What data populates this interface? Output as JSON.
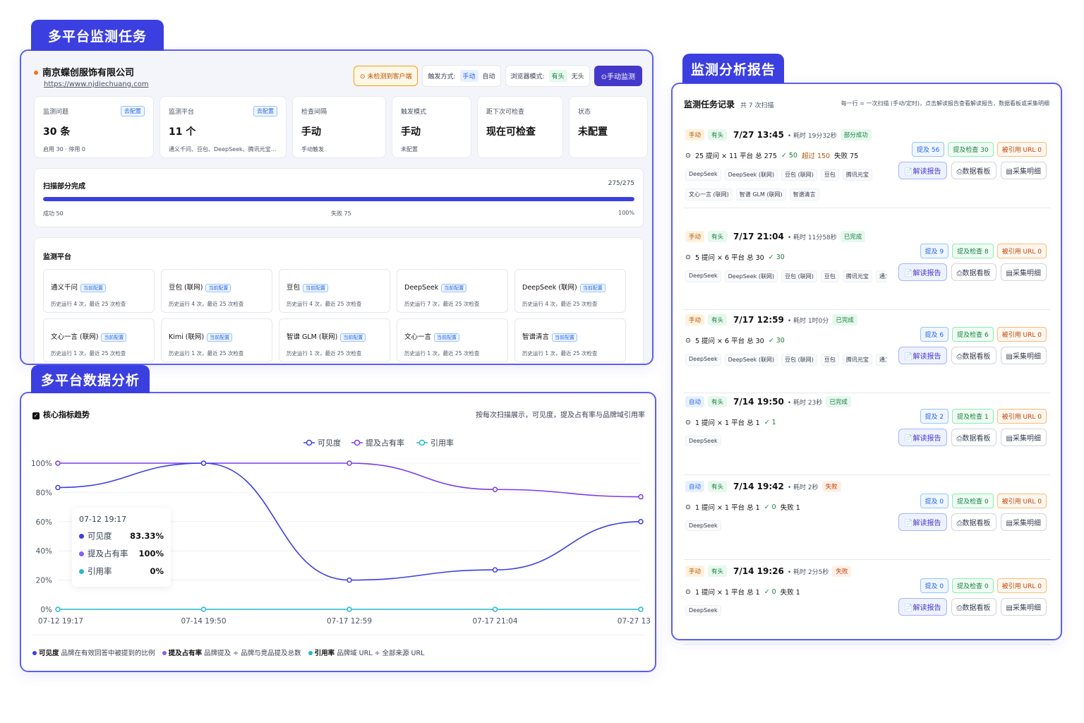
{
  "sections": {
    "monitor_task": "多平台监测任务",
    "data_analysis": "多平台数据分析",
    "report": "监测分析报告"
  },
  "task": {
    "company": "南京蝶创服饰有限公司",
    "url": "https://www.njdiechuang.com",
    "warn": "未检测到客户端",
    "trigger_label": "触发方式:",
    "trigger_on": "手动",
    "trigger_off": "自动",
    "browser_label": "浏览器模式:",
    "browser_on": "有头",
    "browser_off": "无头",
    "manual_btn": "⊙手动监测",
    "stats": [
      {
        "label": "监测问题",
        "value": "30 条",
        "sub": "启用 30 · 停用 0",
        "cfg": "去配置"
      },
      {
        "label": "监测平台",
        "value": "11 个",
        "sub": "通义千问、豆包、DeepSeek、腾讯元宝...",
        "cfg": "去配置"
      },
      {
        "label": "检查间隔",
        "value": "手动",
        "sub": "手动触发",
        "cfg": ""
      },
      {
        "label": "触发模式",
        "value": "手动",
        "sub": "未配置",
        "cfg": ""
      },
      {
        "label": "距下次可检查",
        "value": "现在可检查",
        "sub": "",
        "cfg": ""
      },
      {
        "label": "状态",
        "value": "未配置",
        "sub": "",
        "cfg": ""
      }
    ],
    "scan": {
      "title": "扫描部分完成",
      "count": "275/275",
      "progress": 1.0,
      "success": "成功 50",
      "fail": "失败 75",
      "pct": "100%"
    },
    "platforms_title": "监测平台",
    "platforms": [
      {
        "name": "通义千问",
        "badge": "当前配置",
        "hist": "历史运行 4 次，最近 25 次检查"
      },
      {
        "name": "豆包 (联网)",
        "badge": "当前配置",
        "hist": "历史运行 4 次，最近 25 次检查"
      },
      {
        "name": "豆包",
        "badge": "当前配置",
        "hist": "历史运行 4 次，最近 25 次检查"
      },
      {
        "name": "DeepSeek",
        "badge": "当前配置",
        "hist": "历史运行 7 次，最近 25 次检查"
      },
      {
        "name": "DeepSeek (联网)",
        "badge": "当前配置",
        "hist": "历史运行 4 次，最近 25 次检查"
      },
      {
        "name": "文心一言 (联网)",
        "badge": "当前配置",
        "hist": "历史运行 1 次，最近 25 次检查"
      },
      {
        "name": "Kimi (联网)",
        "badge": "当前配置",
        "hist": "历史运行 1 次，最近 25 次检查"
      },
      {
        "name": "智谱 GLM (联网)",
        "badge": "当前配置",
        "hist": "历史运行 1 次，最近 25 次检查"
      },
      {
        "name": "文心一言",
        "badge": "当前配置",
        "hist": "历史运行 1 次，最近 25 次检查"
      },
      {
        "name": "智谱清言",
        "badge": "当前配置",
        "hist": "历史运行 1 次，最近 25 次检查"
      }
    ]
  },
  "analysis": {
    "title": "核心指标趋势",
    "desc": "按每次扫描展示，可见度，提及占有率与品牌域引用率",
    "tooltip": {
      "time": "07-12 19:17",
      "rows": [
        {
          "name": "可见度",
          "value": "83.33%",
          "color": "#3b3fe0"
        },
        {
          "name": "提及占有率",
          "value": "100%",
          "color": "#8b5cf6"
        },
        {
          "name": "引用率",
          "value": "0%",
          "color": "#22b8cf"
        }
      ]
    },
    "footer": [
      {
        "name": "可见度",
        "desc": "品牌在有效回答中被提到的比例",
        "color": "#3b3fe0"
      },
      {
        "name": "提及占有率",
        "desc": "品牌提及 ÷ 品牌与竞品提及总数",
        "color": "#8b5cf6"
      },
      {
        "name": "引用率",
        "desc": "品牌域 URL ÷ 全部来源 URL",
        "color": "#22b8cf"
      }
    ]
  },
  "chart_data": {
    "type": "line",
    "x": [
      "07-12 19:17",
      "07-14 19:50",
      "07-17 12:59",
      "07-17 21:04",
      "07-27 13"
    ],
    "ylim": [
      0,
      100
    ],
    "yticks": [
      "0%",
      "20%",
      "40%",
      "60%",
      "80%",
      "100%"
    ],
    "series": [
      {
        "name": "可见度",
        "color": "#3b3fe0",
        "values": [
          83.33,
          100,
          20,
          27,
          60
        ]
      },
      {
        "name": "提及占有率",
        "color": "#7c3aed",
        "values": [
          100,
          100,
          100,
          82,
          77
        ]
      },
      {
        "name": "引用率",
        "color": "#22b8cf",
        "values": [
          0,
          0,
          0,
          0,
          0
        ]
      }
    ],
    "legend_position": "top-center",
    "grid": true
  },
  "report": {
    "title": "监测任务记录",
    "count": "共 7 次扫描",
    "desc": "每一行 = 一次扫描 (手动/定时)，点击解读报告查看解读报告，数据看板或采集明细",
    "records": [
      {
        "trig": "手动",
        "trig_type": "m",
        "mode": "有头",
        "time": "7/27 13:45",
        "dur": "• 耗时 19分32秒",
        "status": "部分成功",
        "status_type": "p",
        "summary": "25 提问 × 11 平台  总 275",
        "ok": "✓ 50",
        "over": "超过 150",
        "fail": "失败 75",
        "chips1": [
          "DeepSeek",
          "DeepSeek (联网)",
          "豆包 (联网)",
          "豆包",
          "腾讯元宝"
        ],
        "chips2": [
          "文心一言 (联网)",
          "智谱 GLM (联网)",
          "智谱清言"
        ],
        "m1": "提及 56",
        "m2": "提及检查 30",
        "m3": "被引用 URL 0"
      },
      {
        "trig": "手动",
        "trig_type": "m",
        "mode": "有头",
        "time": "7/17 21:04",
        "dur": "• 耗时 11分58秒",
        "status": "已完成",
        "status_type": "d",
        "summary": "5 提问 × 6 平台  总 30",
        "ok": "✓ 30",
        "over": "",
        "fail": "",
        "chips1": [
          "DeepSeek",
          "DeepSeek (联网)",
          "豆包 (联网)",
          "豆包",
          "腾讯元宝",
          "通义千问"
        ],
        "chips2": [],
        "m1": "提及 9",
        "m2": "提及检查 8",
        "m3": "被引用 URL 0"
      },
      {
        "trig": "手动",
        "trig_type": "m",
        "mode": "有头",
        "time": "7/17 12:59",
        "dur": "• 耗时 1时0分",
        "status": "已完成",
        "status_type": "d",
        "summary": "5 提问 × 6 平台  总 30",
        "ok": "✓ 30",
        "over": "",
        "fail": "",
        "chips1": [
          "DeepSeek",
          "DeepSeek (联网)",
          "豆包 (联网)",
          "豆包",
          "腾讯元宝",
          "通义千问"
        ],
        "chips2": [],
        "m1": "提及 6",
        "m2": "提及检查 6",
        "m3": "被引用 URL 0"
      },
      {
        "trig": "自动",
        "trig_type": "a",
        "mode": "有头",
        "time": "7/14 19:50",
        "dur": "• 耗时 23秒",
        "status": "已完成",
        "status_type": "d",
        "summary": "1 提问 × 1 平台  总 1",
        "ok": "✓ 1",
        "over": "",
        "fail": "",
        "chips1": [
          "DeepSeek"
        ],
        "chips2": [],
        "m1": "提及 2",
        "m2": "提及检查 1",
        "m3": "被引用 URL 0"
      },
      {
        "trig": "自动",
        "trig_type": "a",
        "mode": "有头",
        "time": "7/14 19:42",
        "dur": "• 耗时 2秒",
        "status": "失败",
        "status_type": "f",
        "summary": "1 提问 × 1 平台  总 1",
        "ok": "✓ 0",
        "over": "",
        "fail": "失败 1",
        "chips1": [
          "DeepSeek"
        ],
        "chips2": [],
        "m1": "提及 0",
        "m2": "提及检查 0",
        "m3": "被引用 URL 0"
      },
      {
        "trig": "手动",
        "trig_type": "m",
        "mode": "有头",
        "time": "7/14 19:26",
        "dur": "• 耗时 2分5秒",
        "status": "失败",
        "status_type": "f",
        "summary": "1 提问 × 1 平台  总 1",
        "ok": "✓ 0",
        "over": "",
        "fail": "失败 1",
        "chips1": [
          "DeepSeek"
        ],
        "chips2": [],
        "m1": "提及 0",
        "m2": "提及检查 0",
        "m3": "被引用 URL 0"
      }
    ],
    "actions": {
      "read": "📄解读报告",
      "board": "⎙数据看板",
      "detail": "▤采集明细"
    }
  }
}
